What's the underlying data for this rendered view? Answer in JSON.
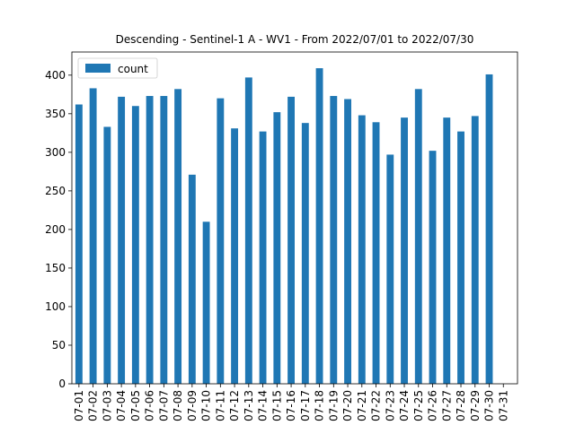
{
  "chart_data": {
    "type": "bar",
    "title": "Descending - Sentinel-1 A - WV1 - From 2022/07/01 to 2022/07/30",
    "xlabel": "",
    "ylabel": "",
    "ylim": [
      0,
      430
    ],
    "yticks": [
      0,
      50,
      100,
      150,
      200,
      250,
      300,
      350,
      400
    ],
    "grid": false,
    "legend_position": "top-left",
    "categories": [
      "07-01",
      "07-02",
      "07-03",
      "07-04",
      "07-05",
      "07-06",
      "07-07",
      "07-08",
      "07-09",
      "07-10",
      "07-11",
      "07-12",
      "07-13",
      "07-14",
      "07-15",
      "07-16",
      "07-17",
      "07-18",
      "07-19",
      "07-20",
      "07-21",
      "07-22",
      "07-23",
      "07-24",
      "07-25",
      "07-26",
      "07-27",
      "07-28",
      "07-29",
      "07-30",
      "07-31"
    ],
    "series": [
      {
        "name": "count",
        "color": "#1f77b4",
        "values": [
          362,
          383,
          333,
          372,
          360,
          373,
          373,
          382,
          271,
          210,
          370,
          331,
          397,
          327,
          352,
          372,
          338,
          409,
          373,
          369,
          348,
          339,
          297,
          345,
          382,
          302,
          345,
          327,
          347,
          401,
          null
        ]
      }
    ]
  }
}
